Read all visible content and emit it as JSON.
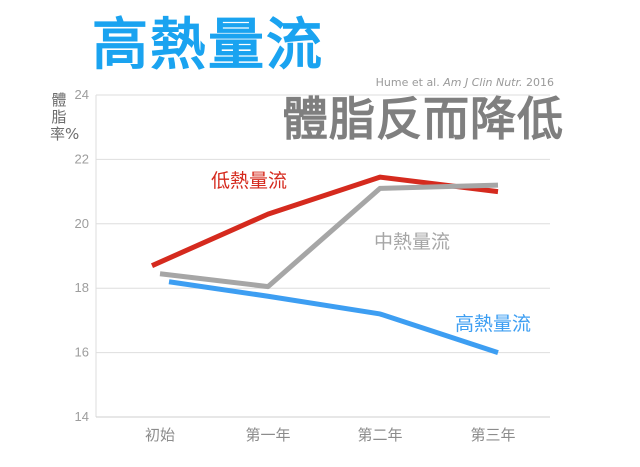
{
  "title": "高熱量流",
  "subtitle": "體脂反而降低",
  "citation": {
    "prefix": "Hume et al. ",
    "journal": "Am J Clin Nutr.",
    "year": " 2016"
  },
  "chart_data": {
    "type": "line",
    "ylabel": "體脂率%",
    "xlabel": "",
    "categories": [
      "初始",
      "第一年",
      "第二年",
      "第三年"
    ],
    "ylim": [
      14,
      24
    ],
    "yticks": [
      14,
      16,
      18,
      20,
      22,
      24
    ],
    "grid": true,
    "series": [
      {
        "name": "低熱量流",
        "color": "#d52a1e",
        "values": [
          18.7,
          20.3,
          21.45,
          21.0
        ]
      },
      {
        "name": "中熱量流",
        "color": "#a6a6a6",
        "values": [
          18.45,
          18.05,
          21.1,
          21.2
        ]
      },
      {
        "name": "高熱量流",
        "color": "#3d9ef2",
        "values": [
          18.2,
          17.75,
          17.2,
          16.0
        ]
      }
    ]
  }
}
